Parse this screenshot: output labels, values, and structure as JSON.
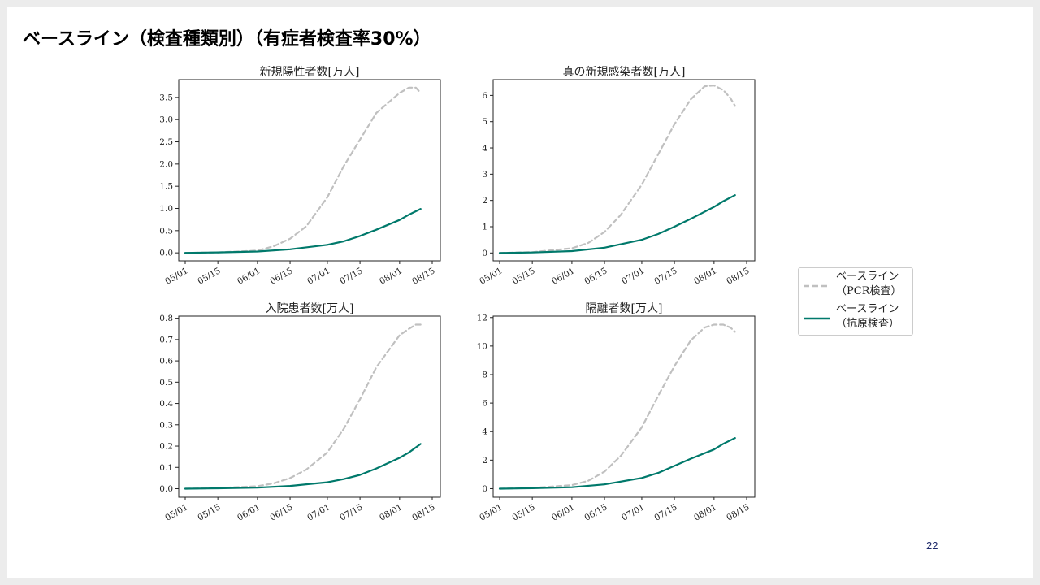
{
  "slide": {
    "title": "ベースライン（検査種類別）（有症者検査率30%）",
    "page_number": "22"
  },
  "legend": {
    "items": [
      {
        "line1": "ベースライン",
        "line2": "（PCR検査）",
        "color": "#c0c0c0",
        "style": "dashed"
      },
      {
        "line1": "ベースライン",
        "line2": "（抗原検査）",
        "color": "#00796b",
        "style": "solid"
      }
    ]
  },
  "chart_data": [
    {
      "type": "line",
      "title": "新規陽性者数[万人]",
      "x_ticks": [
        "05/01",
        "05/15",
        "06/01",
        "06/15",
        "07/01",
        "07/15",
        "08/01",
        "08/15"
      ],
      "x_range": [
        "05/01",
        "08/15"
      ],
      "ylim": [
        -0.18,
        3.9
      ],
      "y_ticks": [
        0.0,
        0.5,
        1.0,
        1.5,
        2.0,
        2.5,
        3.0,
        3.5
      ],
      "y_tick_labels": [
        "0.0",
        "0.5",
        "1.0",
        "1.5",
        "2.0",
        "2.5",
        "3.0",
        "3.5"
      ],
      "series": [
        {
          "color": "#c0c0c0",
          "style": "dashed",
          "x": [
            "05/01",
            "05/15",
            "06/01",
            "06/08",
            "06/15",
            "06/22",
            "07/01",
            "07/08",
            "07/15",
            "07/22",
            "08/01",
            "08/05",
            "08/08",
            "08/10"
          ],
          "values": [
            0.0,
            0.01,
            0.05,
            0.15,
            0.32,
            0.6,
            1.25,
            1.95,
            2.55,
            3.15,
            3.6,
            3.72,
            3.72,
            3.6
          ]
        },
        {
          "color": "#00796b",
          "style": "solid",
          "x": [
            "05/01",
            "05/15",
            "06/01",
            "06/15",
            "07/01",
            "07/08",
            "07/15",
            "07/22",
            "08/01",
            "08/05",
            "08/10"
          ],
          "values": [
            0.0,
            0.01,
            0.03,
            0.08,
            0.18,
            0.26,
            0.38,
            0.52,
            0.74,
            0.86,
            0.99
          ]
        }
      ]
    },
    {
      "type": "line",
      "title": "真の新規感染者数[万人]",
      "x_ticks": [
        "05/01",
        "05/15",
        "06/01",
        "06/15",
        "07/01",
        "07/15",
        "08/01",
        "08/15"
      ],
      "x_range": [
        "05/01",
        "08/15"
      ],
      "ylim": [
        -0.3,
        6.6
      ],
      "y_ticks": [
        0,
        1,
        2,
        3,
        4,
        5,
        6
      ],
      "y_tick_labels": [
        "0",
        "1",
        "2",
        "3",
        "4",
        "5",
        "6"
      ],
      "series": [
        {
          "color": "#c0c0c0",
          "style": "dashed",
          "x": [
            "05/01",
            "05/15",
            "06/01",
            "06/08",
            "06/15",
            "06/22",
            "07/01",
            "07/08",
            "07/15",
            "07/22",
            "07/28",
            "08/01",
            "08/05",
            "08/08",
            "08/10"
          ],
          "values": [
            0.0,
            0.03,
            0.18,
            0.38,
            0.8,
            1.45,
            2.6,
            3.75,
            4.9,
            5.85,
            6.35,
            6.38,
            6.2,
            5.9,
            5.6
          ]
        },
        {
          "color": "#00796b",
          "style": "solid",
          "x": [
            "05/01",
            "05/15",
            "06/01",
            "06/15",
            "07/01",
            "07/08",
            "07/15",
            "07/22",
            "08/01",
            "08/05",
            "08/10"
          ],
          "values": [
            0.0,
            0.02,
            0.07,
            0.2,
            0.5,
            0.72,
            1.0,
            1.3,
            1.75,
            1.97,
            2.2
          ]
        }
      ]
    },
    {
      "type": "line",
      "title": "入院患者数[万人]",
      "x_ticks": [
        "05/01",
        "05/15",
        "06/01",
        "06/15",
        "07/01",
        "07/15",
        "08/01",
        "08/15"
      ],
      "x_range": [
        "05/01",
        "08/15"
      ],
      "ylim": [
        -0.04,
        0.81
      ],
      "y_ticks": [
        0.0,
        0.1,
        0.2,
        0.3,
        0.4,
        0.5,
        0.6,
        0.7,
        0.8
      ],
      "y_tick_labels": [
        "0.0",
        "0.1",
        "0.2",
        "0.3",
        "0.4",
        "0.5",
        "0.6",
        "0.7",
        "0.8"
      ],
      "series": [
        {
          "color": "#c0c0c0",
          "style": "dashed",
          "x": [
            "05/01",
            "05/15",
            "06/01",
            "06/08",
            "06/15",
            "06/22",
            "07/01",
            "07/08",
            "07/15",
            "07/22",
            "08/01",
            "08/05",
            "08/08",
            "08/10"
          ],
          "values": [
            0.0,
            0.003,
            0.012,
            0.025,
            0.05,
            0.09,
            0.17,
            0.28,
            0.42,
            0.57,
            0.72,
            0.75,
            0.77,
            0.77
          ]
        },
        {
          "color": "#00796b",
          "style": "solid",
          "x": [
            "05/01",
            "05/15",
            "06/01",
            "06/15",
            "07/01",
            "07/08",
            "07/15",
            "07/22",
            "08/01",
            "08/05",
            "08/10"
          ],
          "values": [
            0.0,
            0.002,
            0.005,
            0.013,
            0.03,
            0.045,
            0.065,
            0.095,
            0.145,
            0.17,
            0.21
          ]
        }
      ]
    },
    {
      "type": "line",
      "title": "隔離者数[万人]",
      "x_ticks": [
        "05/01",
        "05/15",
        "06/01",
        "06/15",
        "07/01",
        "07/15",
        "08/01",
        "08/15"
      ],
      "x_range": [
        "05/01",
        "08/15"
      ],
      "ylim": [
        -0.6,
        12.1
      ],
      "y_ticks": [
        0,
        2,
        4,
        6,
        8,
        10,
        12
      ],
      "y_tick_labels": [
        "0",
        "2",
        "4",
        "6",
        "8",
        "10",
        "12"
      ],
      "series": [
        {
          "color": "#c0c0c0",
          "style": "dashed",
          "x": [
            "05/01",
            "05/15",
            "06/01",
            "06/08",
            "06/15",
            "06/22",
            "07/01",
            "07/08",
            "07/15",
            "07/22",
            "07/28",
            "08/01",
            "08/05",
            "08/08",
            "08/10"
          ],
          "values": [
            0.0,
            0.05,
            0.25,
            0.55,
            1.2,
            2.3,
            4.3,
            6.5,
            8.6,
            10.4,
            11.3,
            11.5,
            11.5,
            11.3,
            11.0
          ]
        },
        {
          "color": "#00796b",
          "style": "solid",
          "x": [
            "05/01",
            "05/15",
            "06/01",
            "06/15",
            "07/01",
            "07/08",
            "07/15",
            "07/22",
            "08/01",
            "08/05",
            "08/10"
          ],
          "values": [
            0.0,
            0.03,
            0.1,
            0.3,
            0.75,
            1.1,
            1.6,
            2.1,
            2.75,
            3.15,
            3.55
          ]
        }
      ]
    }
  ]
}
